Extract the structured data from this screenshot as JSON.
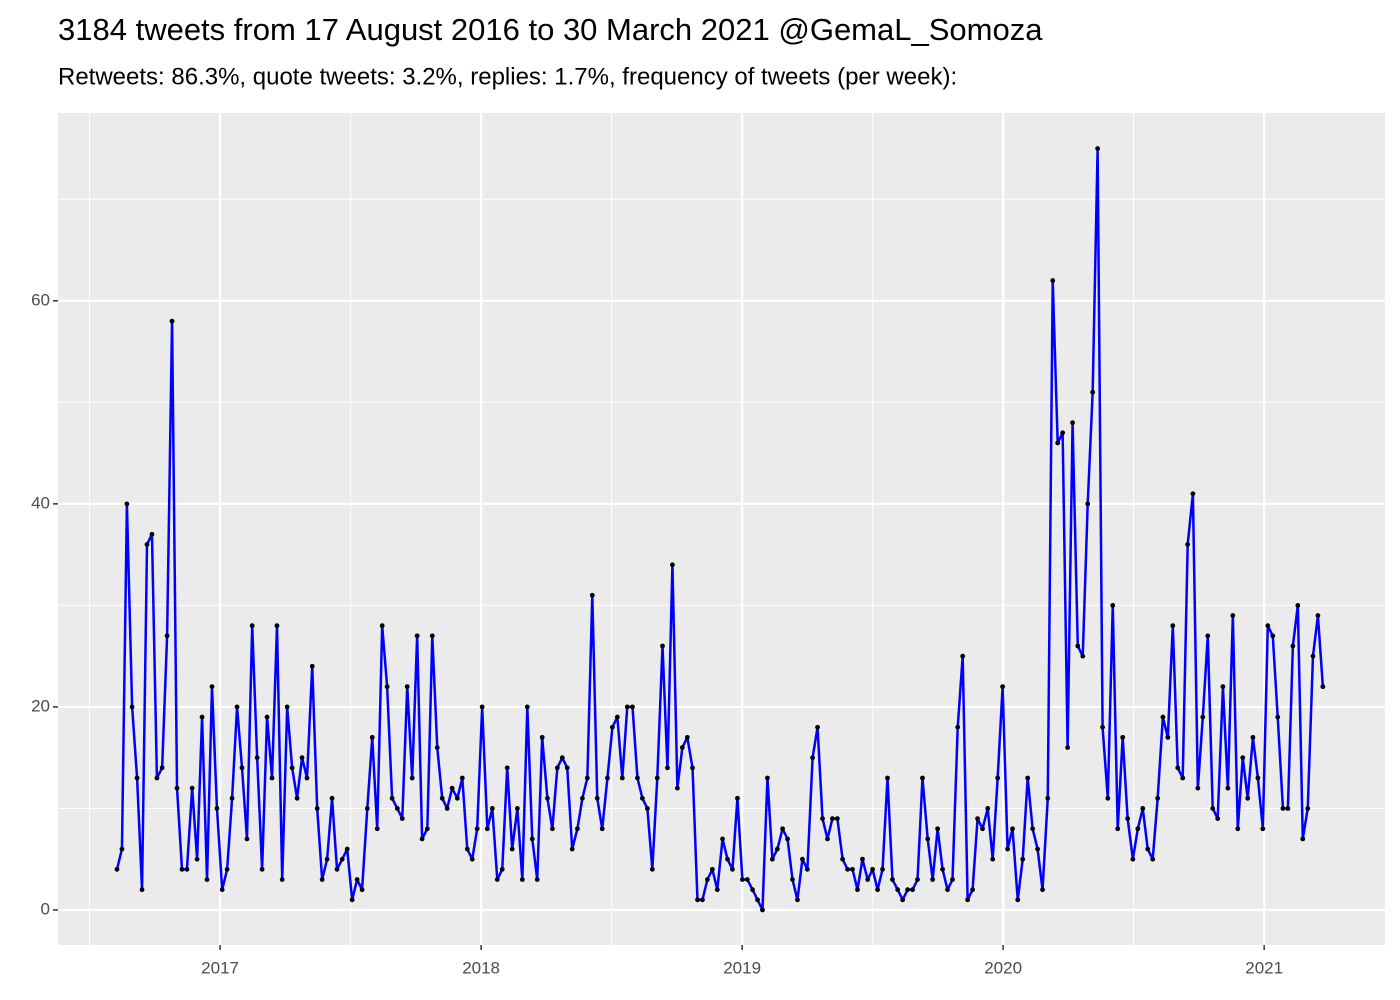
{
  "chart_data": {
    "type": "line",
    "title": "3184 tweets from 17 August 2016 to 30 March 2021 @GemaL_Somoza",
    "subtitle": "Retweets: 86.3%, quote tweets: 3.2%, replies: 1.7%, frequency of tweets (per week):",
    "color": "#0000ff",
    "point_color": "#000000",
    "grid": true,
    "xlim": [
      2016.379,
      2021.463
    ],
    "ylim": [
      -3.45,
      78.5
    ],
    "xticks": [
      2017,
      2018,
      2019,
      2020,
      2021
    ],
    "yticks": [
      0,
      20,
      40,
      60
    ],
    "x": [
      2016.605,
      2016.624,
      2016.643,
      2016.663,
      2016.682,
      2016.701,
      2016.72,
      2016.739,
      2016.758,
      2016.778,
      2016.797,
      2016.816,
      2016.835,
      2016.854,
      2016.873,
      2016.893,
      2016.912,
      2016.931,
      2016.95,
      2016.969,
      2016.988,
      2017.008,
      2017.027,
      2017.046,
      2017.065,
      2017.084,
      2017.103,
      2017.123,
      2017.142,
      2017.161,
      2017.18,
      2017.199,
      2017.218,
      2017.238,
      2017.257,
      2017.276,
      2017.295,
      2017.314,
      2017.333,
      2017.353,
      2017.372,
      2017.391,
      2017.41,
      2017.429,
      2017.448,
      2017.468,
      2017.487,
      2017.506,
      2017.525,
      2017.544,
      2017.564,
      2017.583,
      2017.602,
      2017.621,
      2017.64,
      2017.659,
      2017.679,
      2017.698,
      2017.717,
      2017.736,
      2017.755,
      2017.774,
      2017.794,
      2017.813,
      2017.832,
      2017.851,
      2017.87,
      2017.889,
      2017.909,
      2017.928,
      2017.947,
      2017.966,
      2017.985,
      2018.004,
      2018.024,
      2018.043,
      2018.062,
      2018.081,
      2018.1,
      2018.119,
      2018.139,
      2018.158,
      2018.177,
      2018.196,
      2018.215,
      2018.234,
      2018.254,
      2018.273,
      2018.292,
      2018.311,
      2018.33,
      2018.349,
      2018.369,
      2018.388,
      2018.407,
      2018.426,
      2018.445,
      2018.464,
      2018.484,
      2018.503,
      2018.522,
      2018.541,
      2018.56,
      2018.58,
      2018.599,
      2018.618,
      2018.637,
      2018.656,
      2018.675,
      2018.695,
      2018.714,
      2018.733,
      2018.752,
      2018.771,
      2018.79,
      2018.81,
      2018.829,
      2018.848,
      2018.867,
      2018.886,
      2018.905,
      2018.925,
      2018.944,
      2018.963,
      2018.982,
      2019.001,
      2019.02,
      2019.04,
      2019.059,
      2019.078,
      2019.097,
      2019.116,
      2019.135,
      2019.155,
      2019.174,
      2019.193,
      2019.212,
      2019.231,
      2019.25,
      2019.27,
      2019.289,
      2019.308,
      2019.327,
      2019.346,
      2019.365,
      2019.385,
      2019.404,
      2019.423,
      2019.442,
      2019.461,
      2019.481,
      2019.5,
      2019.519,
      2019.538,
      2019.557,
      2019.576,
      2019.596,
      2019.615,
      2019.634,
      2019.653,
      2019.672,
      2019.691,
      2019.711,
      2019.73,
      2019.749,
      2019.768,
      2019.787,
      2019.806,
      2019.826,
      2019.845,
      2019.864,
      2019.883,
      2019.902,
      2019.921,
      2019.941,
      2019.96,
      2019.979,
      2019.998,
      2020.017,
      2020.036,
      2020.056,
      2020.075,
      2020.094,
      2020.113,
      2020.132,
      2020.151,
      2020.171,
      2020.19,
      2020.209,
      2020.228,
      2020.247,
      2020.266,
      2020.286,
      2020.305,
      2020.324,
      2020.343,
      2020.362,
      2020.381,
      2020.401,
      2020.42,
      2020.439,
      2020.458,
      2020.477,
      2020.497,
      2020.516,
      2020.535,
      2020.554,
      2020.573,
      2020.592,
      2020.612,
      2020.631,
      2020.65,
      2020.669,
      2020.688,
      2020.707,
      2020.727,
      2020.746,
      2020.765,
      2020.784,
      2020.803,
      2020.822,
      2020.842,
      2020.861,
      2020.88,
      2020.899,
      2020.918,
      2020.937,
      2020.957,
      2020.976,
      2020.995,
      2021.014,
      2021.033,
      2021.052,
      2021.072,
      2021.091,
      2021.11,
      2021.129,
      2021.148,
      2021.167,
      2021.187,
      2021.206,
      2021.225
    ],
    "values": [
      4,
      6,
      40,
      20,
      13,
      2,
      36,
      37,
      13,
      14,
      27,
      58,
      12,
      4,
      4,
      12,
      5,
      19,
      3,
      22,
      10,
      2,
      4,
      11,
      20,
      14,
      7,
      28,
      15,
      4,
      19,
      13,
      28,
      3,
      20,
      14,
      11,
      15,
      13,
      24,
      10,
      3,
      5,
      11,
      4,
      5,
      6,
      1,
      3,
      2,
      10,
      17,
      8,
      28,
      22,
      11,
      10,
      9,
      22,
      13,
      27,
      7,
      8,
      27,
      16,
      11,
      10,
      12,
      11,
      13,
      6,
      5,
      8,
      20,
      8,
      10,
      3,
      4,
      14,
      6,
      10,
      3,
      20,
      7,
      3,
      17,
      11,
      8,
      14,
      15,
      14,
      6,
      8,
      11,
      13,
      31,
      11,
      8,
      13,
      18,
      19,
      13,
      20,
      20,
      13,
      11,
      10,
      4,
      13,
      26,
      14,
      34,
      12,
      16,
      17,
      14,
      1,
      1,
      3,
      4,
      2,
      7,
      5,
      4,
      11,
      3,
      3,
      2,
      1,
      0,
      13,
      5,
      6,
      8,
      7,
      3,
      1,
      5,
      4,
      15,
      18,
      9,
      7,
      9,
      9,
      5,
      4,
      4,
      2,
      5,
      3,
      4,
      2,
      4,
      13,
      3,
      2,
      1,
      2,
      2,
      3,
      13,
      7,
      3,
      8,
      4,
      2,
      3,
      18,
      25,
      1,
      2,
      9,
      8,
      10,
      5,
      13,
      22,
      6,
      8,
      1,
      5,
      13,
      8,
      6,
      2,
      11,
      62,
      46,
      47,
      16,
      48,
      26,
      25,
      40,
      51,
      75,
      18,
      11,
      30,
      8,
      17,
      9,
      5,
      8,
      10,
      6,
      5,
      11,
      19,
      17,
      28,
      14,
      13,
      36,
      41,
      12,
      19,
      27,
      10,
      9,
      22,
      12,
      29,
      8,
      15,
      11,
      17,
      13,
      8,
      28,
      27,
      19,
      10,
      10,
      26,
      30,
      7,
      10,
      25,
      29,
      22
    ]
  }
}
